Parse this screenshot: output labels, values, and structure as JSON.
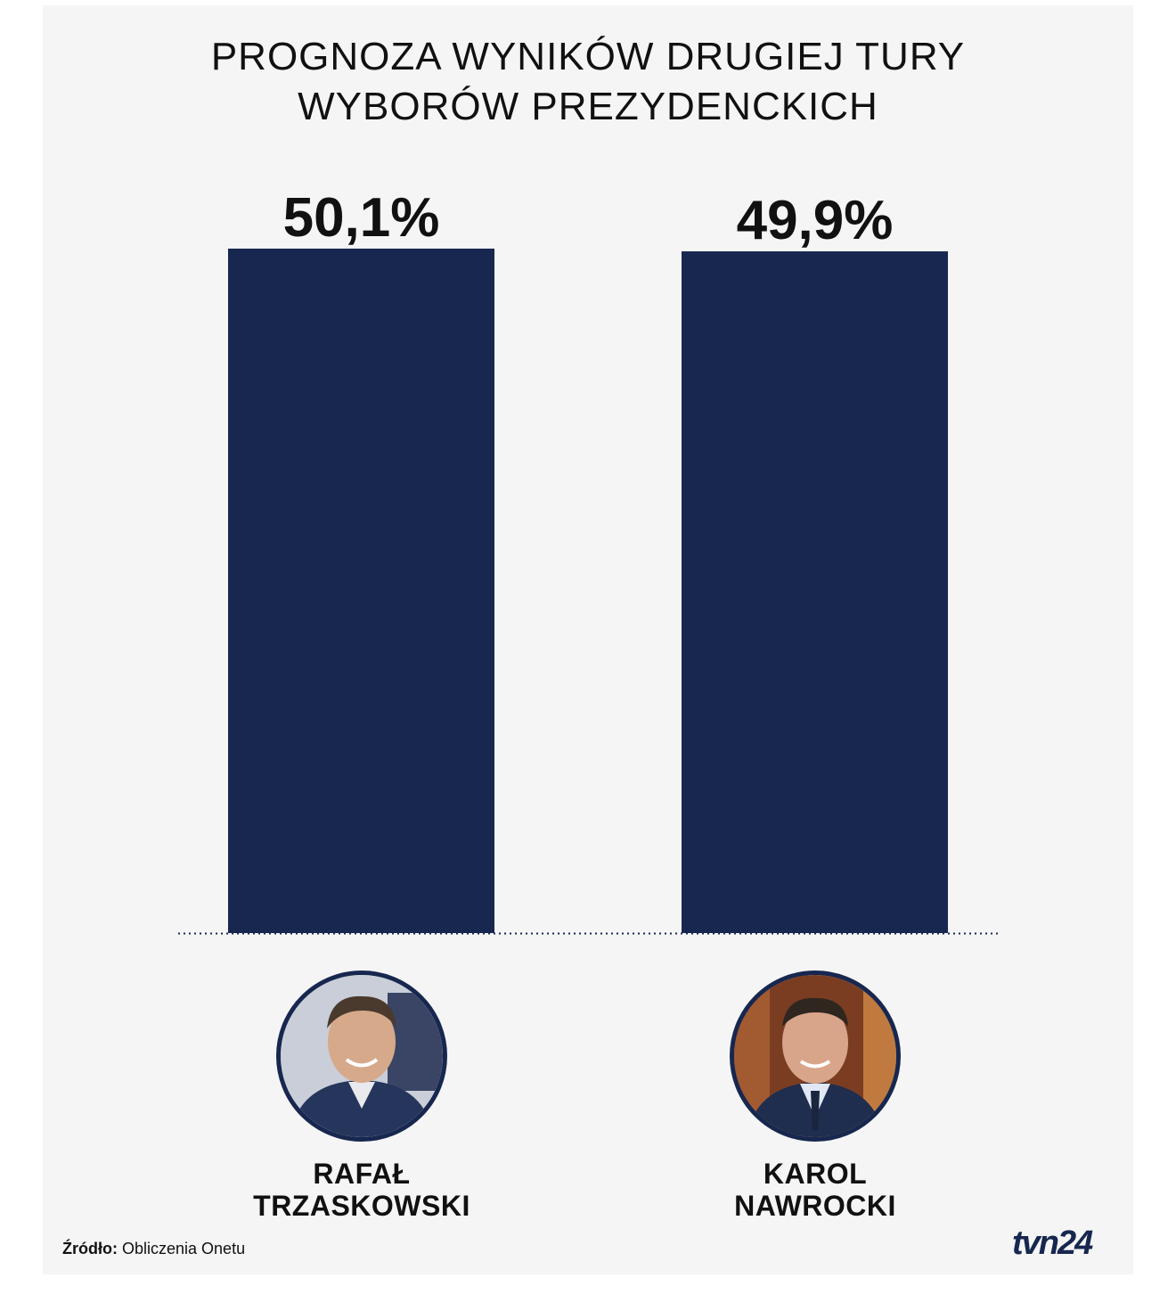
{
  "title_lines": [
    "PROGNOZA WYNIKÓW DRUGIEJ TURY",
    "WYBORÓW PREZYDENCKICH"
  ],
  "colors": {
    "bar": "#17274f",
    "background": "#f5f5f5",
    "text": "#111111"
  },
  "chart_data": {
    "type": "bar",
    "title": "PROGNOZA WYNIKÓW DRUGIEJ TURY WYBORÓW PREZYDENCKICH",
    "categories": [
      "RAFAŁ TRZASKOWSKI",
      "KAROL NAWROCKI"
    ],
    "values": [
      50.1,
      49.9
    ],
    "value_labels": [
      "50,1%",
      "49,9%"
    ],
    "xlabel": "",
    "ylabel": "",
    "grid": false,
    "legend": "none"
  },
  "candidates": [
    {
      "first_name": "RAFAŁ",
      "last_name": "TRZASKOWSKI",
      "photo_icon": "candidate-photo-trzaskowski"
    },
    {
      "first_name": "KAROL",
      "last_name": "NAWROCKI",
      "photo_icon": "candidate-photo-nawrocki"
    }
  ],
  "source": {
    "label": "Źródło:",
    "text": "Obliczenia Onetu"
  },
  "logo": "tvn24"
}
